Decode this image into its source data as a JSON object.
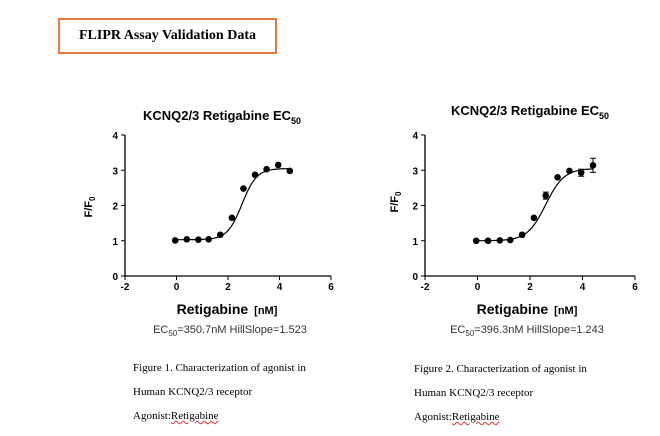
{
  "header": {
    "title": "FLIPR Assay Validation Data"
  },
  "chart_data": [
    {
      "type": "scatter",
      "title_main": "KCNQ2/3   Retigabine EC",
      "title_sub": "50",
      "xlabel_main": "Retigabine",
      "xlabel_unit": "[nM]",
      "ylabel_main": "F/F",
      "ylabel_sub": "0",
      "xlim": [
        -2,
        6
      ],
      "ylim": [
        0,
        4
      ],
      "xticks": [
        -2,
        0,
        2,
        4,
        6
      ],
      "yticks": [
        0,
        1,
        2,
        3,
        4
      ],
      "xtick_labels": [
        "-2",
        "0",
        "2",
        "4",
        "6"
      ],
      "ytick_labels": [
        "0",
        "1",
        "2",
        "3",
        "4"
      ],
      "x": [
        -0.05,
        0.4,
        0.85,
        1.25,
        1.7,
        2.15,
        2.6,
        3.05,
        3.5,
        3.95,
        4.4
      ],
      "y": [
        1.01,
        1.04,
        1.03,
        1.04,
        1.17,
        1.65,
        2.48,
        2.87,
        3.03,
        3.15,
        2.98
      ],
      "err": [
        0,
        0,
        0,
        0,
        0,
        0,
        0,
        0,
        0,
        0,
        0
      ],
      "fit": {
        "bottom": 1.03,
        "top": 3.05,
        "logEC50": 2.545,
        "hill": 1.523
      },
      "ec_prefix": "EC",
      "ec_sub": "50",
      "ec_text": "=350.7nM  HillSlope=1.523"
    },
    {
      "type": "scatter",
      "title_main": "KCNQ2/3   Retigabine EC",
      "title_sub": "50",
      "xlabel_main": "Retigabine",
      "xlabel_unit": "[nM]",
      "ylabel_main": "F/F",
      "ylabel_sub": "0",
      "xlim": [
        -2,
        6
      ],
      "ylim": [
        0,
        4
      ],
      "xticks": [
        -2,
        0,
        2,
        4,
        6
      ],
      "yticks": [
        0,
        1,
        2,
        3,
        4
      ],
      "xtick_labels": [
        "-2",
        "0",
        "2",
        "4",
        "6"
      ],
      "ytick_labels": [
        "0",
        "1",
        "2",
        "3",
        "4"
      ],
      "x": [
        -0.05,
        0.4,
        0.85,
        1.25,
        1.7,
        2.15,
        2.6,
        3.05,
        3.5,
        3.95,
        4.4
      ],
      "y": [
        1.0,
        1.0,
        1.01,
        1.02,
        1.17,
        1.65,
        2.28,
        2.8,
        2.98,
        2.93,
        3.14
      ],
      "err": [
        0,
        0,
        0,
        0,
        0,
        0,
        0.1,
        0,
        0,
        0.1,
        0.2
      ],
      "fit": {
        "bottom": 1.0,
        "top": 3.05,
        "logEC50": 2.598,
        "hill": 1.243
      },
      "ec_prefix": "EC",
      "ec_sub": "50",
      "ec_text": "=396.3nM  HillSlope=1.243"
    }
  ],
  "captions": [
    {
      "line1": "Figure 1. Characterization of agonist in",
      "line2": "Human KCNQ2/3 receptor",
      "agonist_label": " Agonist:",
      "agonist_value": "Retigabine"
    },
    {
      "line1": "Figure 2. Characterization of agonist in",
      "line2": "Human KCNQ2/3 receptor",
      "agonist_label": " Agonist:",
      "agonist_value": "Retigabine"
    }
  ]
}
